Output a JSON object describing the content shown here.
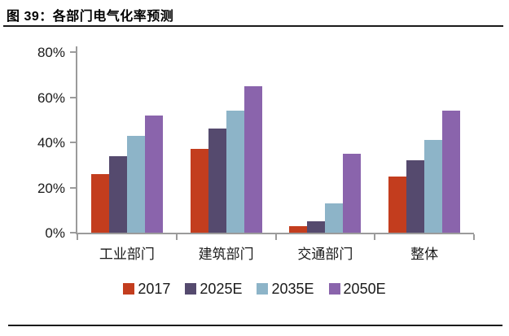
{
  "header": {
    "title": "图 39：各部门电气化率预测"
  },
  "chart_data": {
    "type": "bar",
    "title": "图 39：各部门电气化率预测",
    "categories": [
      "工业部门",
      "建筑部门",
      "交通部门",
      "整体"
    ],
    "series": [
      {
        "name": "2017",
        "color": "#c33d1e",
        "values": [
          26,
          37,
          3,
          25
        ]
      },
      {
        "name": "2025E",
        "color": "#554a6e",
        "values": [
          34,
          46,
          5,
          32
        ]
      },
      {
        "name": "2035E",
        "color": "#8db4c8",
        "values": [
          43,
          54,
          13,
          41
        ]
      },
      {
        "name": "2050E",
        "color": "#8a64ac",
        "values": [
          52,
          65,
          35,
          54
        ]
      }
    ],
    "xlabel": "",
    "ylabel": "",
    "ylim": [
      0,
      80
    ],
    "ytick_labels": [
      "0%",
      "20%",
      "40%",
      "60%",
      "80%"
    ],
    "ytick_values": [
      0,
      20,
      40,
      60,
      80
    ],
    "grid": false,
    "legend_position": "bottom"
  },
  "colors": {
    "axis": "#9b9b9b",
    "text": "#1a1a1a",
    "rule": "#1a1a1a",
    "background": "#ffffff"
  }
}
